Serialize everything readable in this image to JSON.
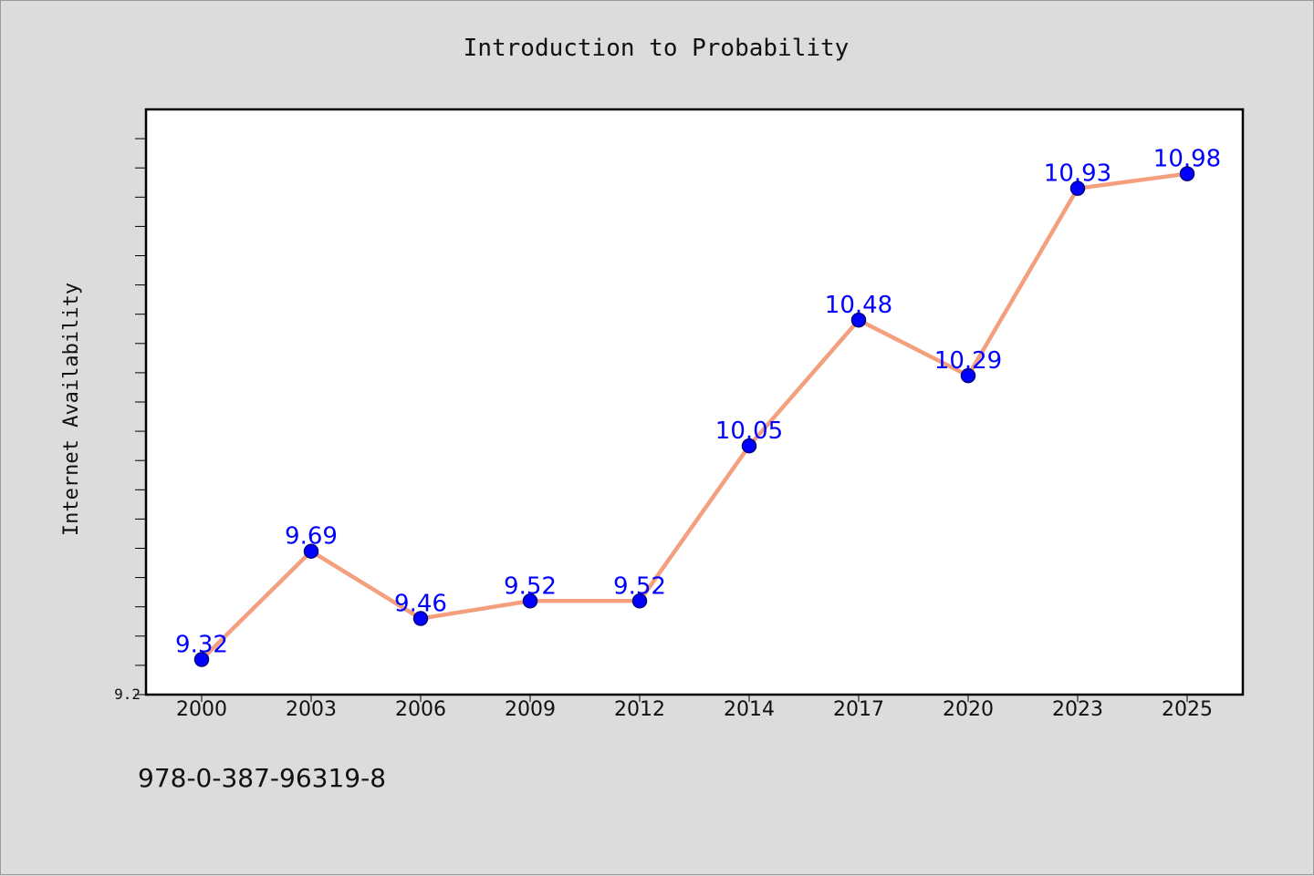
{
  "chart_data": {
    "type": "line",
    "title": "Introduction to Probability",
    "xlabel": "",
    "ylabel": "Internet Availability",
    "categories": [
      "2000",
      "2003",
      "2006",
      "2009",
      "2012",
      "2014",
      "2017",
      "2020",
      "2023",
      "2025"
    ],
    "series": [
      {
        "values": [
          9.32,
          9.69,
          9.46,
          9.52,
          9.52,
          10.05,
          10.48,
          10.29,
          10.93,
          10.98
        ],
        "labels": [
          "9.32",
          "9.69",
          "9.46",
          "9.52",
          "9.52",
          "10.05",
          "10.48",
          "10.29",
          "10.93",
          "10.98"
        ]
      }
    ],
    "ylim": [
      9.2,
      11.2
    ],
    "ytick_labels": [
      "9.2"
    ],
    "ytick_step": 0.1,
    "grid": false,
    "legend": "none"
  },
  "footer": {
    "isbn": "978-0-387-96319-8"
  },
  "colors": {
    "line": "#f4a07e",
    "marker_fill": "#0000ff",
    "marker_stroke": "#000080",
    "data_label": "#0000ff",
    "plot_background": "#ffffff",
    "page_background": "#dcdcdc"
  }
}
